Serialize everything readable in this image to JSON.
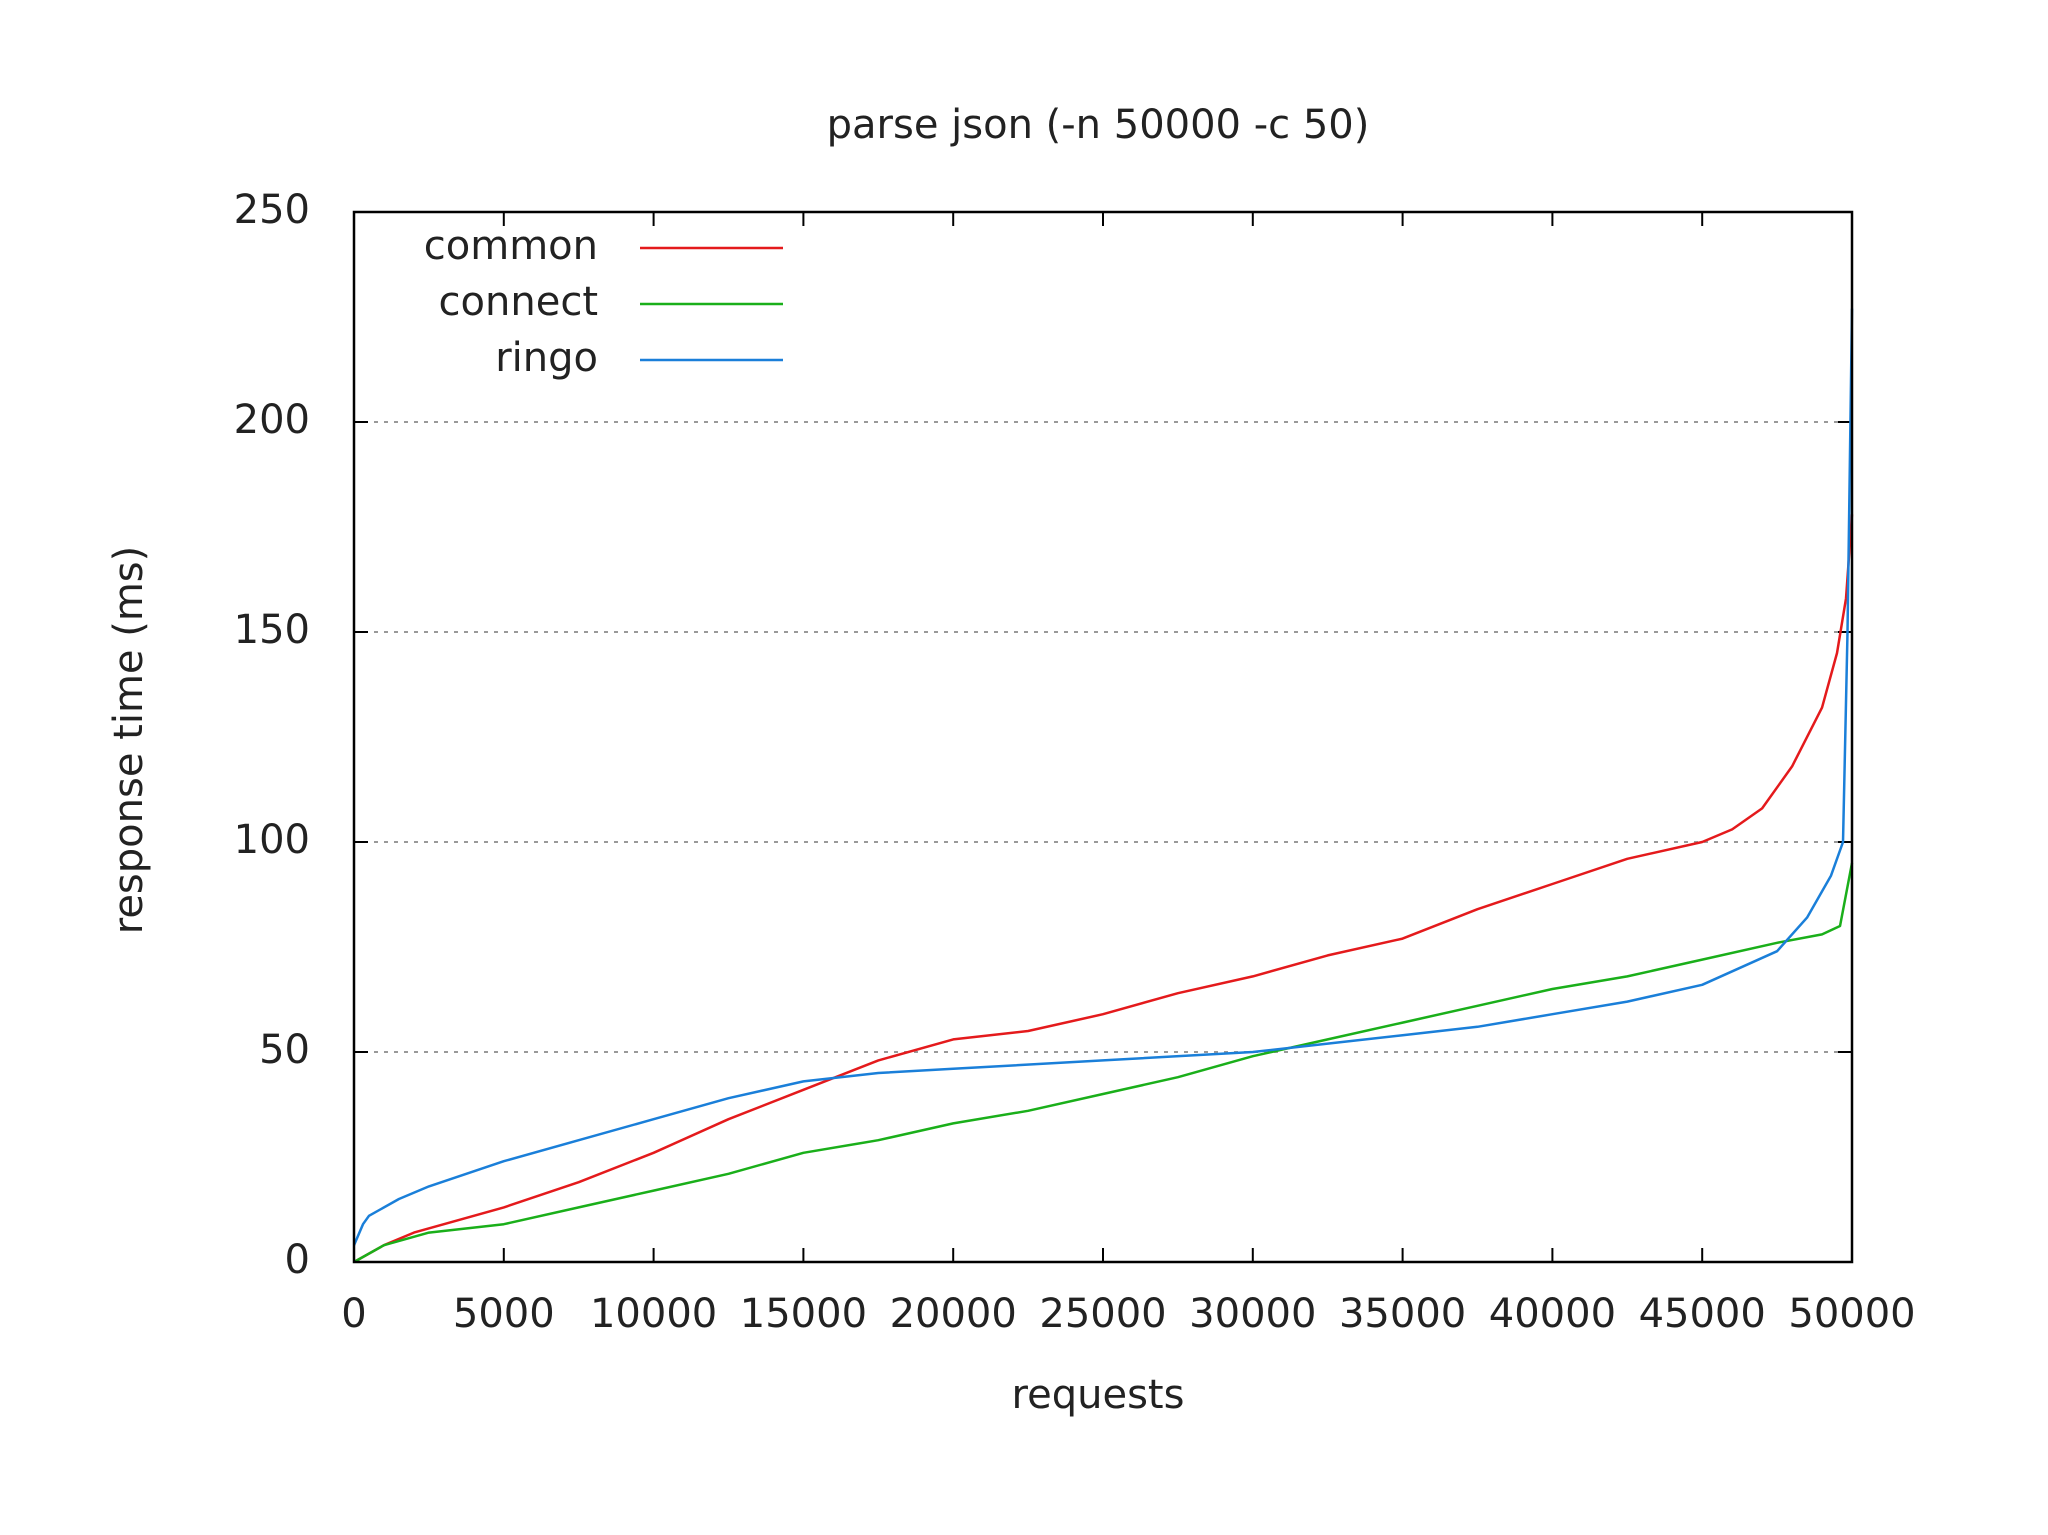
{
  "chart_data": {
    "type": "line",
    "title": "parse json (-n 50000 -c 50)",
    "x_label": "requests",
    "y_label": "response time (ms)",
    "xlim": [
      0,
      50000
    ],
    "ylim": [
      0,
      250
    ],
    "xticks": [
      0,
      5000,
      10000,
      15000,
      20000,
      25000,
      30000,
      35000,
      40000,
      45000,
      50000
    ],
    "yticks": [
      0,
      50,
      100,
      150,
      200,
      250
    ],
    "grid": "y",
    "legend": "top-left",
    "series": [
      {
        "name": "common",
        "color": "#e41a1c",
        "x": [
          0,
          1000,
          2000,
          3000,
          5000,
          7500,
          10000,
          12500,
          15000,
          17500,
          20000,
          22500,
          25000,
          27500,
          30000,
          32500,
          35000,
          37500,
          40000,
          42500,
          45000,
          46000,
          47000,
          48000,
          49000,
          49500,
          49800,
          50000
        ],
        "values": [
          0,
          4,
          7,
          9,
          13,
          19,
          26,
          34,
          41,
          48,
          53,
          55,
          59,
          64,
          68,
          73,
          77,
          84,
          90,
          96,
          100,
          103,
          108,
          118,
          132,
          145,
          158,
          178
        ]
      },
      {
        "name": "connect",
        "color": "#1aaf1a",
        "x": [
          0,
          1000,
          2500,
          5000,
          7500,
          10000,
          12500,
          15000,
          17500,
          20000,
          22500,
          25000,
          27500,
          30000,
          32500,
          35000,
          37500,
          40000,
          42500,
          45000,
          47500,
          49000,
          49600,
          50000
        ],
        "values": [
          0,
          4,
          7,
          9,
          13,
          17,
          21,
          26,
          29,
          33,
          36,
          40,
          44,
          49,
          53,
          57,
          61,
          65,
          68,
          72,
          76,
          78,
          80,
          95
        ]
      },
      {
        "name": "ringo",
        "color": "#1a7fd9",
        "x": [
          0,
          300,
          500,
          1500,
          2500,
          5000,
          7500,
          10000,
          12500,
          15000,
          17500,
          20000,
          25000,
          30000,
          32500,
          35000,
          37500,
          40000,
          42500,
          45000,
          47500,
          48500,
          49300,
          49700,
          49850,
          50000
        ],
        "values": [
          4,
          9,
          11,
          15,
          18,
          24,
          29,
          34,
          39,
          43,
          45,
          46,
          48,
          50,
          52,
          54,
          56,
          59,
          62,
          66,
          74,
          82,
          92,
          100,
          150,
          227
        ]
      }
    ]
  }
}
